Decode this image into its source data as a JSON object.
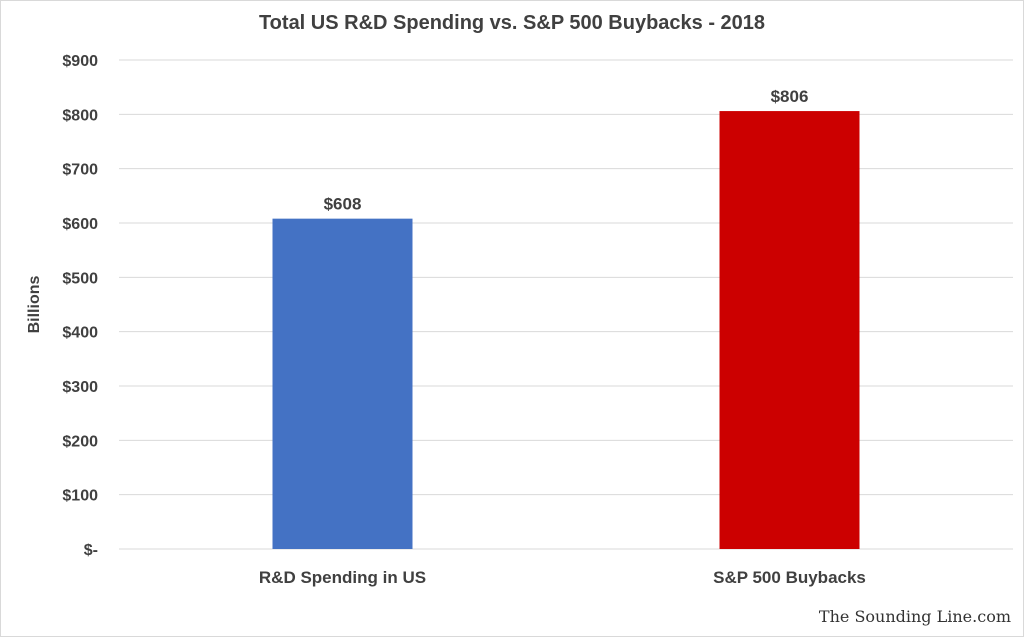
{
  "chart_data": {
    "type": "bar",
    "title": "Total US R&D Spending vs. S&P 500 Buybacks - 2018",
    "xlabel": "",
    "ylabel": "Billions",
    "categories": [
      "R&D Spending in US",
      "S&P 500 Buybacks"
    ],
    "values": [
      608,
      806
    ],
    "data_labels": [
      "$608",
      "$806"
    ],
    "bar_colors": [
      "#4472C4",
      "#CC0000"
    ],
    "ylim": [
      0,
      900
    ],
    "yticks": [
      0,
      100,
      200,
      300,
      400,
      500,
      600,
      700,
      800,
      900
    ],
    "ytick_labels": [
      "$-",
      "$100",
      "$200",
      "$300",
      "$400",
      "$500",
      "$600",
      "$700",
      "$800",
      "$900"
    ],
    "grid": true,
    "legend": "none"
  },
  "credit": "The Sounding Line.com"
}
